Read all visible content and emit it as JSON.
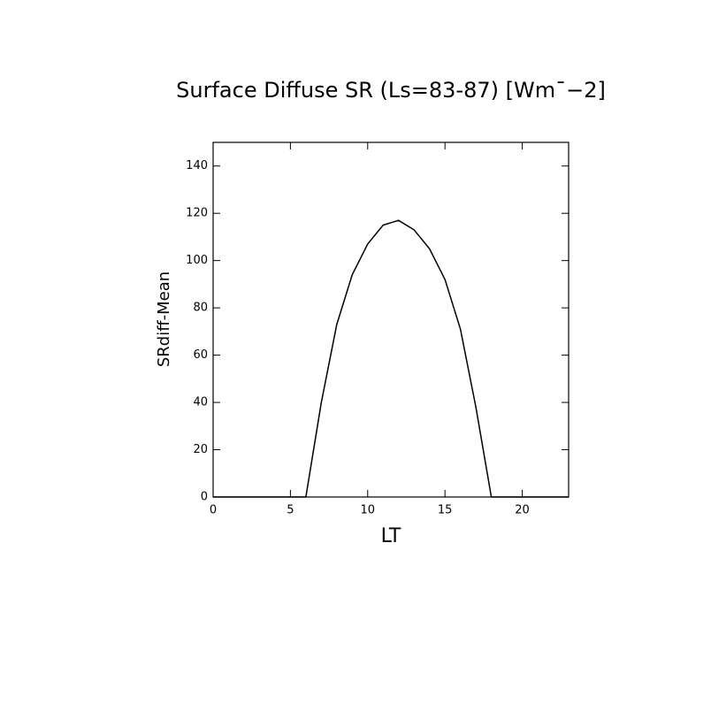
{
  "chart_data": {
    "type": "line",
    "title": "Surface Diffuse SR (Ls=83-87) [Wm¯−2]",
    "x_label": "LT",
    "y_label": "SRdiff-Mean",
    "x": [
      0,
      1,
      2,
      3,
      4,
      5,
      6,
      7,
      8,
      9,
      10,
      11,
      12,
      13,
      14,
      15,
      16,
      17,
      18,
      19,
      20,
      21,
      22,
      23
    ],
    "series": [
      {
        "color": "#000000",
        "values": [
          0,
          0,
          0,
          0,
          0,
          0,
          0,
          40,
          73,
          94,
          107,
          115,
          117,
          113,
          105,
          92,
          71,
          38,
          0,
          0,
          0,
          0,
          0,
          0
        ]
      }
    ],
    "xlim": [
      0,
      23
    ],
    "xticks": [
      0,
      5,
      10,
      15,
      20
    ],
    "ylim": [
      0,
      150
    ],
    "yticks": [
      0,
      20,
      40,
      60,
      80,
      100,
      120,
      140
    ],
    "grid": false
  }
}
